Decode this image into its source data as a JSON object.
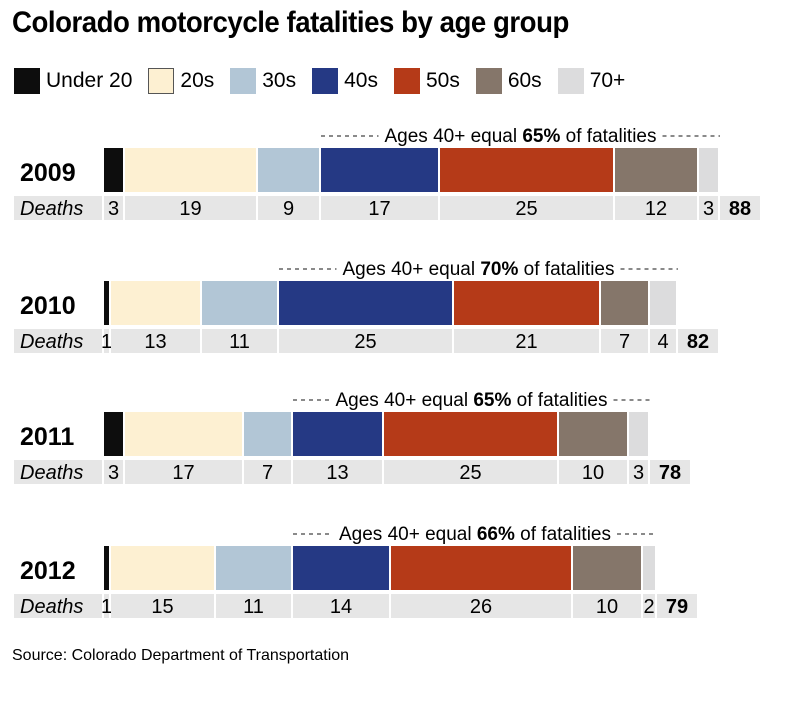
{
  "title": "Colorado motorcycle fatalities by age group",
  "source": "Source: Colorado Department of Transportation",
  "colors": {
    "Under 20": "#0d0d0d",
    "20s": "#fdf0d2",
    "30s": "#b2c6d6",
    "40s": "#253984",
    "50s": "#b53a18",
    "60s": "#85766a",
    "70+": "#dcdcdd"
  },
  "chart_data": {
    "type": "bar",
    "orientation": "horizontal",
    "stacked": true,
    "categories": [
      "2009",
      "2010",
      "2011",
      "2012"
    ],
    "segment_labels": [
      "Under 20",
      "20s",
      "30s",
      "40s",
      "50s",
      "60s",
      "70+"
    ],
    "row_label": "Deaths",
    "series": [
      {
        "name": "Under 20",
        "values": [
          3,
          1,
          3,
          1
        ]
      },
      {
        "name": "20s",
        "values": [
          19,
          13,
          17,
          15
        ]
      },
      {
        "name": "30s",
        "values": [
          9,
          11,
          7,
          11
        ]
      },
      {
        "name": "40s",
        "values": [
          17,
          25,
          13,
          14
        ]
      },
      {
        "name": "50s",
        "values": [
          25,
          21,
          25,
          26
        ]
      },
      {
        "name": "60s",
        "values": [
          12,
          7,
          10,
          10
        ]
      },
      {
        "name": "70+",
        "values": [
          3,
          4,
          3,
          2
        ]
      }
    ],
    "totals": [
      88,
      82,
      78,
      79
    ],
    "annotations": [
      {
        "prefix": "Ages 40+ equal ",
        "value": "65%",
        "suffix": " of fatalities"
      },
      {
        "prefix": "Ages 40+ equal ",
        "value": "70%",
        "suffix": " of fatalities"
      },
      {
        "prefix": "Ages 40+ equal ",
        "value": "65%",
        "suffix": " of fatalities"
      },
      {
        "prefix": "Ages 40+ equal ",
        "value": "66%",
        "suffix": " of fatalities"
      }
    ]
  }
}
